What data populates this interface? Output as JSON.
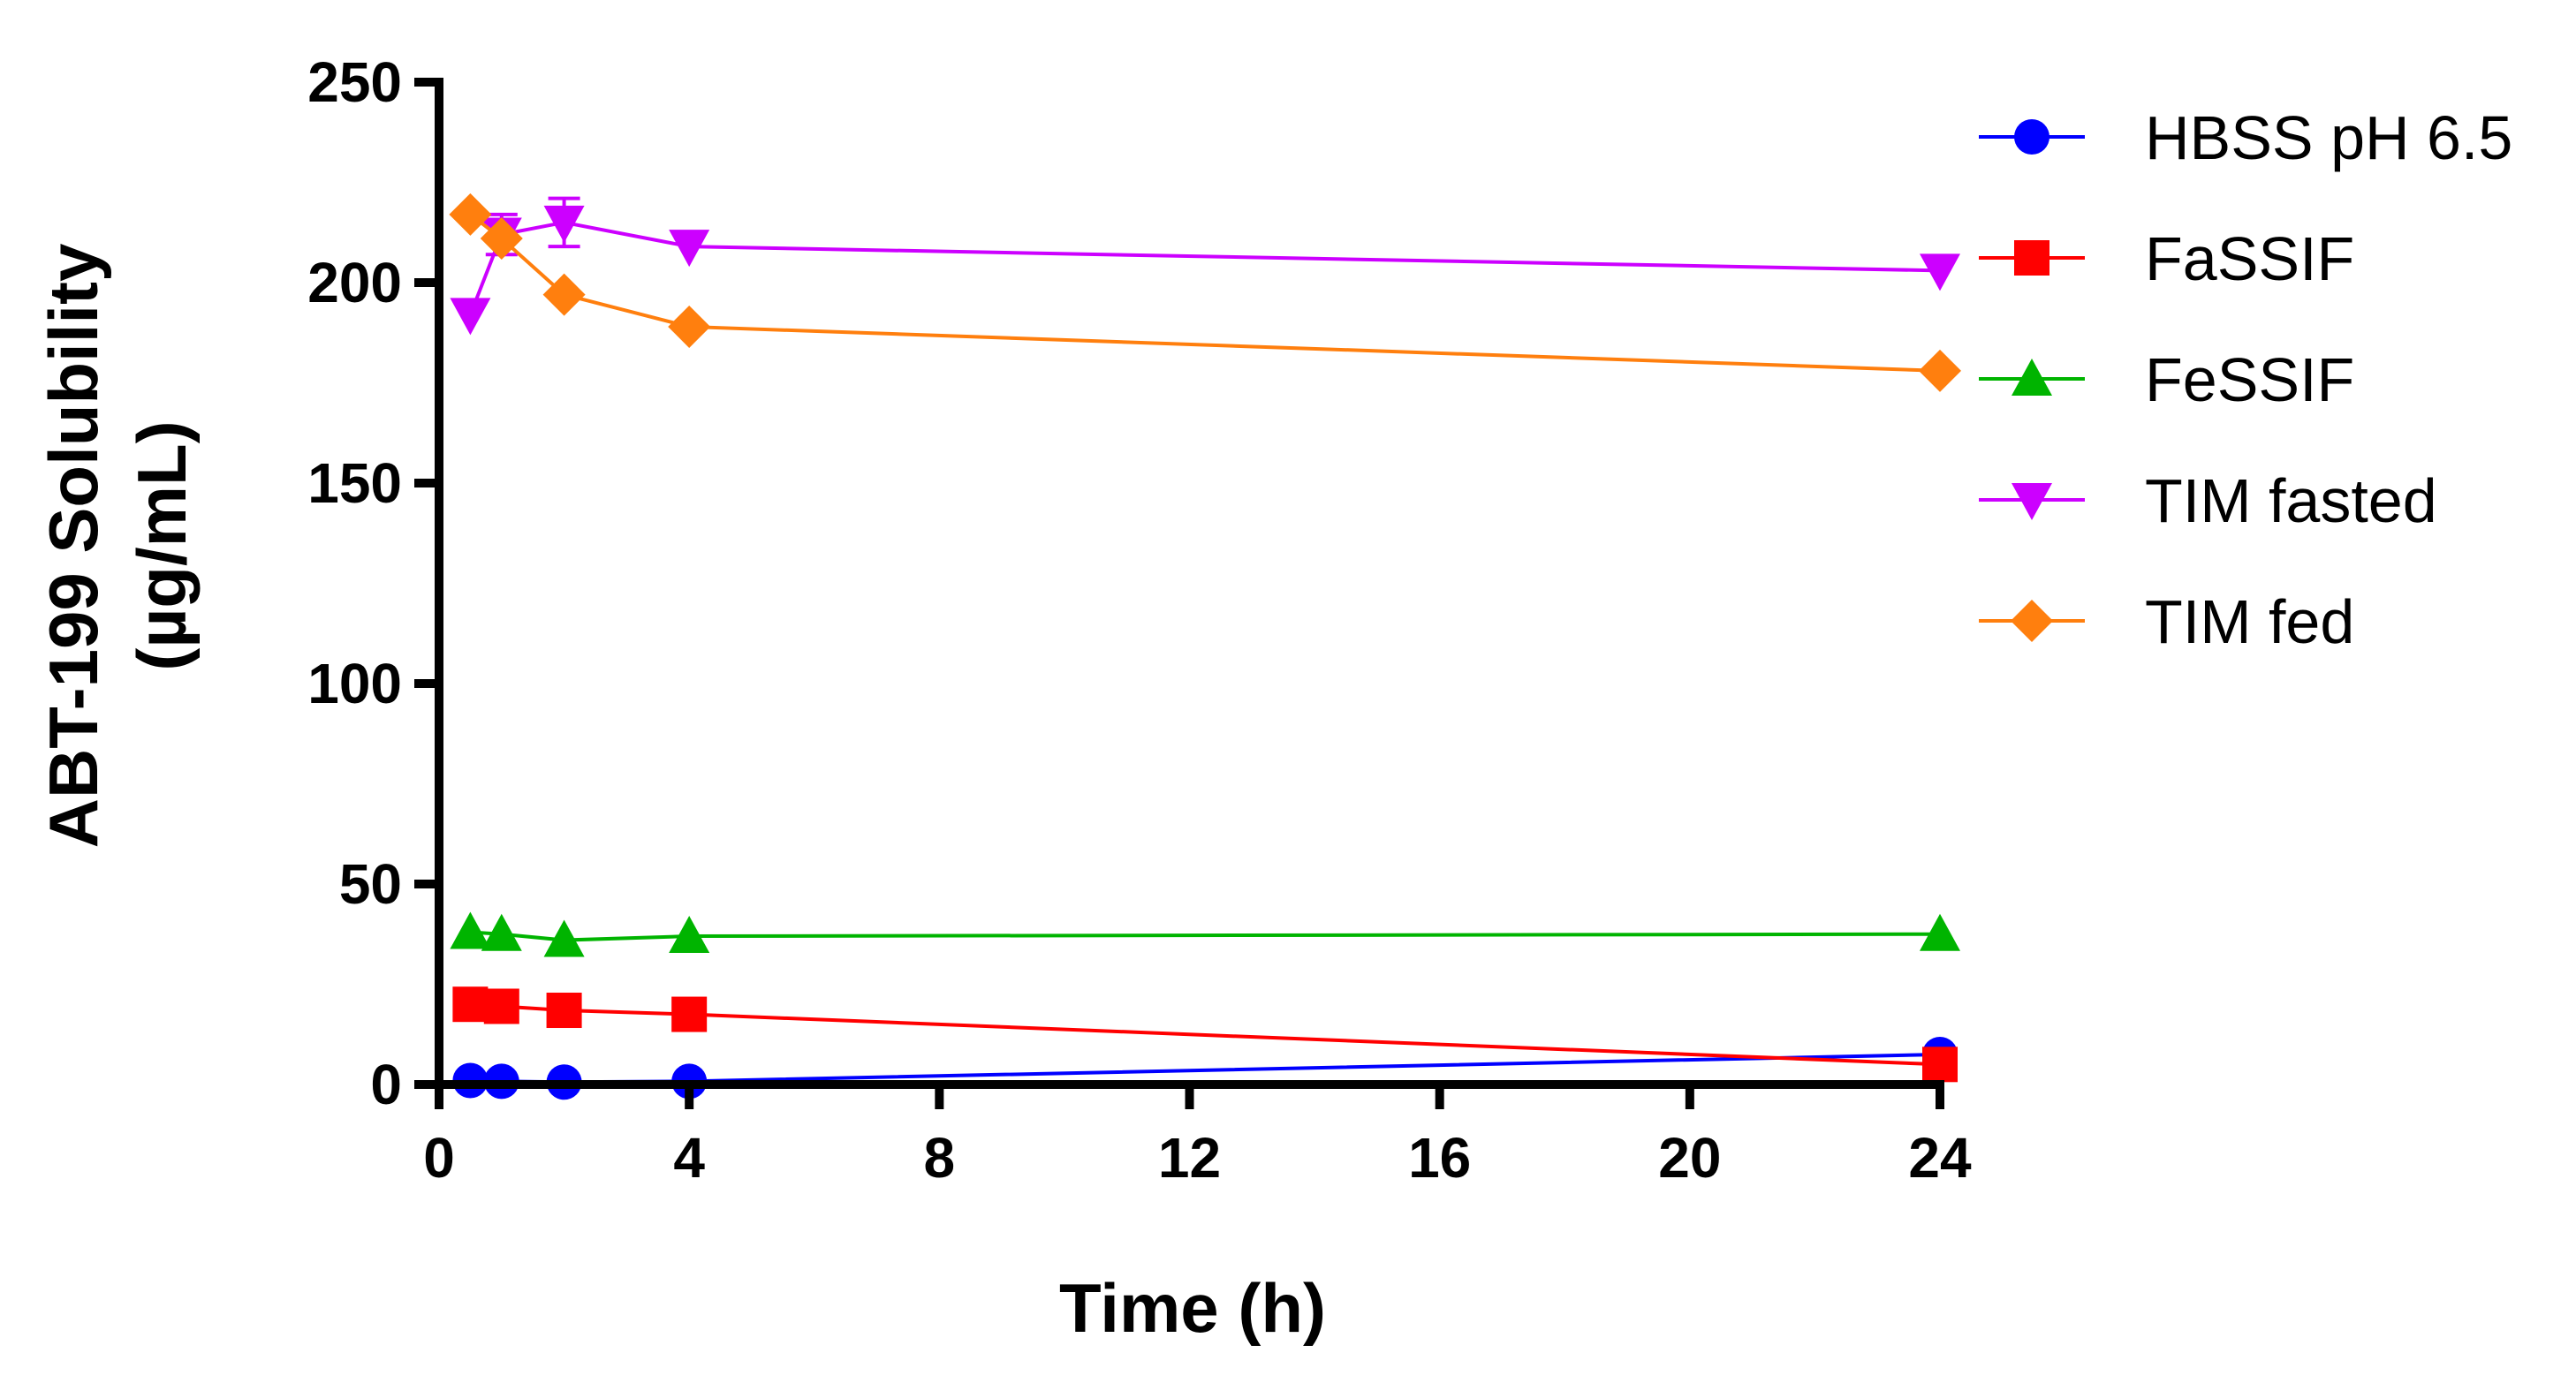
{
  "chart_data": {
    "type": "line",
    "title": "",
    "xlabel": "Time (h)",
    "ylabel": "ABT-199 Solubility",
    "ylabel_units": "(µg/mL)",
    "xlim": [
      0,
      24
    ],
    "ylim": [
      0,
      250
    ],
    "xticks": [
      0,
      4,
      8,
      12,
      16,
      20,
      24
    ],
    "yticks": [
      0,
      50,
      100,
      150,
      200,
      250
    ],
    "grid": false,
    "legend_position": "top-right",
    "series": [
      {
        "name": "HBSS pH 6.5",
        "color": "#0000ff",
        "marker": "circle",
        "x": [
          0.5,
          1,
          2,
          4,
          24
        ],
        "y": [
          1.0,
          0.8,
          0.6,
          0.8,
          7.5
        ]
      },
      {
        "name": "FaSSIF",
        "color": "#ff0000",
        "marker": "square",
        "x": [
          0.5,
          1,
          2,
          4,
          24
        ],
        "y": [
          20.0,
          19.5,
          18.5,
          17.5,
          5.0
        ]
      },
      {
        "name": "FeSSIF",
        "color": "#00b400",
        "marker": "triangle-up",
        "x": [
          0.5,
          1,
          2,
          4,
          24
        ],
        "y": [
          38.0,
          37.5,
          36.0,
          37.0,
          37.5
        ]
      },
      {
        "name": "TIM fasted",
        "color": "#cc00ff",
        "marker": "triangle-down",
        "x": [
          0.5,
          1,
          2,
          4,
          24
        ],
        "y": [
          192.0,
          212.0,
          215.0,
          209.0,
          203.0
        ],
        "error": [
          0,
          5,
          6,
          0,
          0
        ]
      },
      {
        "name": "TIM fed",
        "color": "#ff7f0e",
        "marker": "diamond",
        "x": [
          0.5,
          1,
          2,
          4,
          24
        ],
        "y": [
          217.0,
          211.0,
          197.0,
          189.0,
          178.0
        ]
      }
    ]
  }
}
